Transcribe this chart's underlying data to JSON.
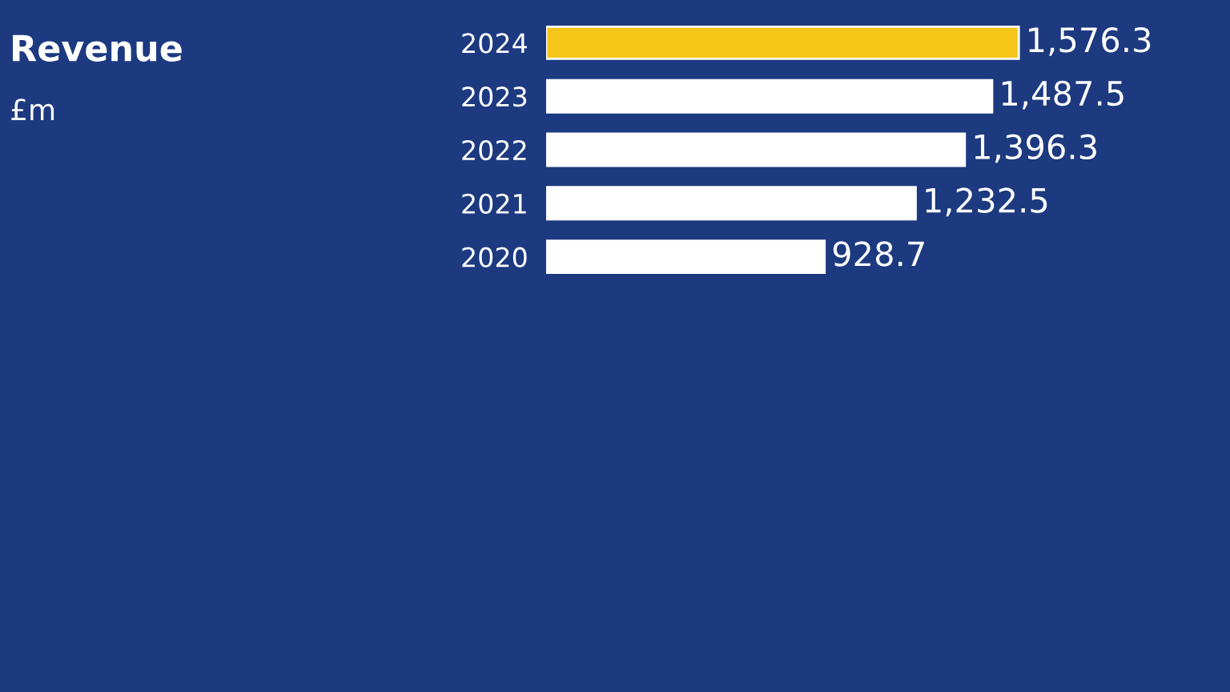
{
  "chart_data": {
    "type": "bar",
    "orientation": "horizontal",
    "title": "Revenue",
    "subtitle": "£m",
    "categories": [
      "2024",
      "2023",
      "2022",
      "2021",
      "2020"
    ],
    "values": [
      1576.3,
      1487.5,
      1396.3,
      1232.5,
      928.7
    ],
    "colors": [
      "#f5c518",
      "#ffffff",
      "#ffffff",
      "#ffffff",
      "#ffffff"
    ],
    "value_labels": [
      "1,576.3",
      "1,487.5",
      "1,396.3",
      "1,232.5",
      "928.7"
    ],
    "grid": false,
    "legend": false
  }
}
